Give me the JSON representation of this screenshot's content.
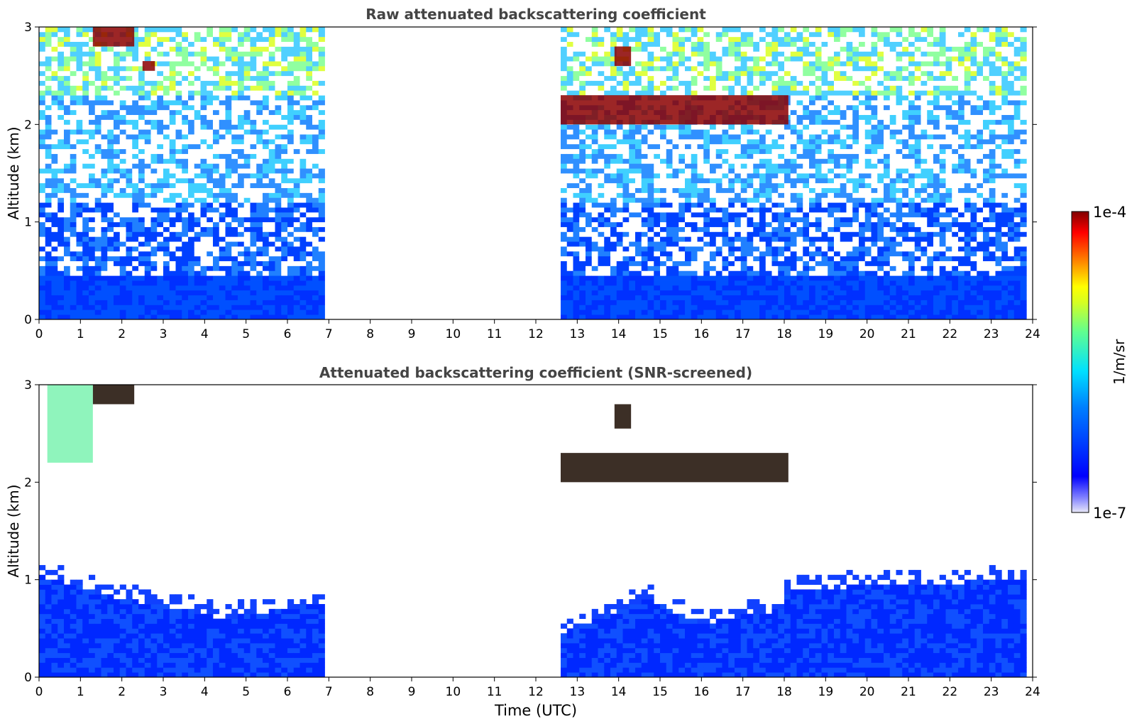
{
  "chart_data": [
    {
      "type": "heatmap",
      "title": "Raw attenuated backscattering coefficient",
      "xlabel": "",
      "ylabel": "Altitude (km)",
      "xlim": [
        0,
        24
      ],
      "ylim": [
        0,
        3
      ],
      "x_ticks": [
        0,
        1,
        2,
        3,
        4,
        5,
        6,
        7,
        8,
        9,
        10,
        11,
        12,
        13,
        14,
        15,
        16,
        17,
        18,
        19,
        20,
        21,
        22,
        23,
        24
      ],
      "y_ticks": [
        0,
        1,
        2,
        3
      ],
      "data_gaps_utc": [
        [
          6.9,
          12.6
        ]
      ],
      "data_end_utc": 23.8,
      "layers": [
        {
          "kind": "cloud",
          "start_utc": 12.6,
          "end_utc": 18.1,
          "altitude_km": [
            2.0,
            2.3
          ]
        },
        {
          "kind": "cloud",
          "start_utc": 13.9,
          "end_utc": 14.3,
          "altitude_km": [
            2.6,
            2.8
          ]
        },
        {
          "kind": "cloud",
          "start_utc": 1.3,
          "end_utc": 2.3,
          "altitude_km": [
            2.8,
            3.0
          ]
        },
        {
          "kind": "cloud",
          "start_utc": 2.5,
          "end_utc": 2.8,
          "altitude_km": [
            2.55,
            2.65
          ]
        }
      ]
    },
    {
      "type": "heatmap",
      "title": "Attenuated backscattering coefficient (SNR-screened)",
      "xlabel": "Time (UTC)",
      "ylabel": "Altitude (km)",
      "xlim": [
        0,
        24
      ],
      "ylim": [
        0,
        3
      ],
      "x_ticks": [
        0,
        1,
        2,
        3,
        4,
        5,
        6,
        7,
        8,
        9,
        10,
        11,
        12,
        13,
        14,
        15,
        16,
        17,
        18,
        19,
        20,
        21,
        22,
        23,
        24
      ],
      "y_ticks": [
        0,
        1,
        2,
        3
      ],
      "data_gaps_utc": [
        [
          6.9,
          12.6
        ]
      ],
      "data_end_utc": 23.8,
      "boundary_layer_top_km": [
        {
          "utc": 0,
          "km": 1.05
        },
        {
          "utc": 2,
          "km": 0.8
        },
        {
          "utc": 3.5,
          "km": 0.7
        },
        {
          "utc": 4.5,
          "km": 0.6
        },
        {
          "utc": 6.7,
          "km": 0.75
        },
        {
          "utc": 12.6,
          "km": 0.45
        },
        {
          "utc": 14.7,
          "km": 0.8
        },
        {
          "utc": 16,
          "km": 0.55
        },
        {
          "utc": 18,
          "km": 0.7
        },
        {
          "utc": 18.1,
          "km": 0.9
        },
        {
          "utc": 23.8,
          "km": 1.0
        }
      ],
      "layers": [
        {
          "kind": "cloud",
          "start_utc": 12.6,
          "end_utc": 18.1,
          "altitude_km": [
            2.0,
            2.3
          ]
        },
        {
          "kind": "cloud",
          "start_utc": 13.9,
          "end_utc": 14.3,
          "altitude_km": [
            2.55,
            2.8
          ]
        },
        {
          "kind": "cloud",
          "start_utc": 1.3,
          "end_utc": 2.3,
          "altitude_km": [
            2.8,
            3.0
          ]
        },
        {
          "kind": "aerosol-plume",
          "start_utc": 0.2,
          "end_utc": 1.3,
          "altitude_km": [
            2.2,
            3.0
          ]
        }
      ]
    }
  ],
  "colorbar": {
    "label": "1/m/sr",
    "max_label": "1e-4",
    "min_label": "1e-7",
    "scale": "log",
    "colormap": "jet",
    "colors": {
      "cloud": "#8b0000",
      "low": "#0000ff",
      "mid": "#00e0ff",
      "high": "#ffff00"
    }
  }
}
